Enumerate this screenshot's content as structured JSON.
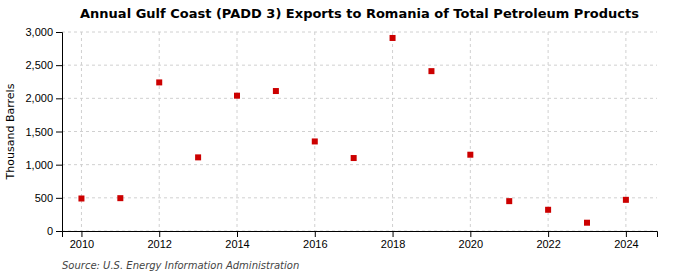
{
  "chart_data": {
    "type": "scatter",
    "title": "Annual Gulf Coast (PADD 3) Exports to Romania of Total Petroleum Products",
    "ylabel": "Thousand Barrels",
    "source": "Source: U.S. Energy Information Administration",
    "x": [
      2010,
      2011,
      2012,
      2013,
      2014,
      2015,
      2016,
      2017,
      2018,
      2019,
      2020,
      2021,
      2022,
      2023,
      2024
    ],
    "values": [
      490,
      495,
      2240,
      1110,
      2040,
      2110,
      1350,
      1100,
      2910,
      2410,
      1150,
      450,
      320,
      125,
      470
    ],
    "color": "#cc0000",
    "marker": "square",
    "grid": true,
    "xlim": [
      2009.5,
      2024.8
    ],
    "xticks": [
      2010,
      2012,
      2014,
      2016,
      2018,
      2020,
      2022,
      2024
    ],
    "ylim": [
      0,
      3000
    ],
    "yticks": [
      0,
      500,
      {
        "value": 1000,
        "label": "1,000"
      },
      {
        "value": 1500,
        "label": "1,500"
      },
      {
        "value": 2000,
        "label": "2,000"
      },
      {
        "value": 2500,
        "label": "2,500"
      },
      {
        "value": 3000,
        "label": "3,000"
      }
    ]
  }
}
